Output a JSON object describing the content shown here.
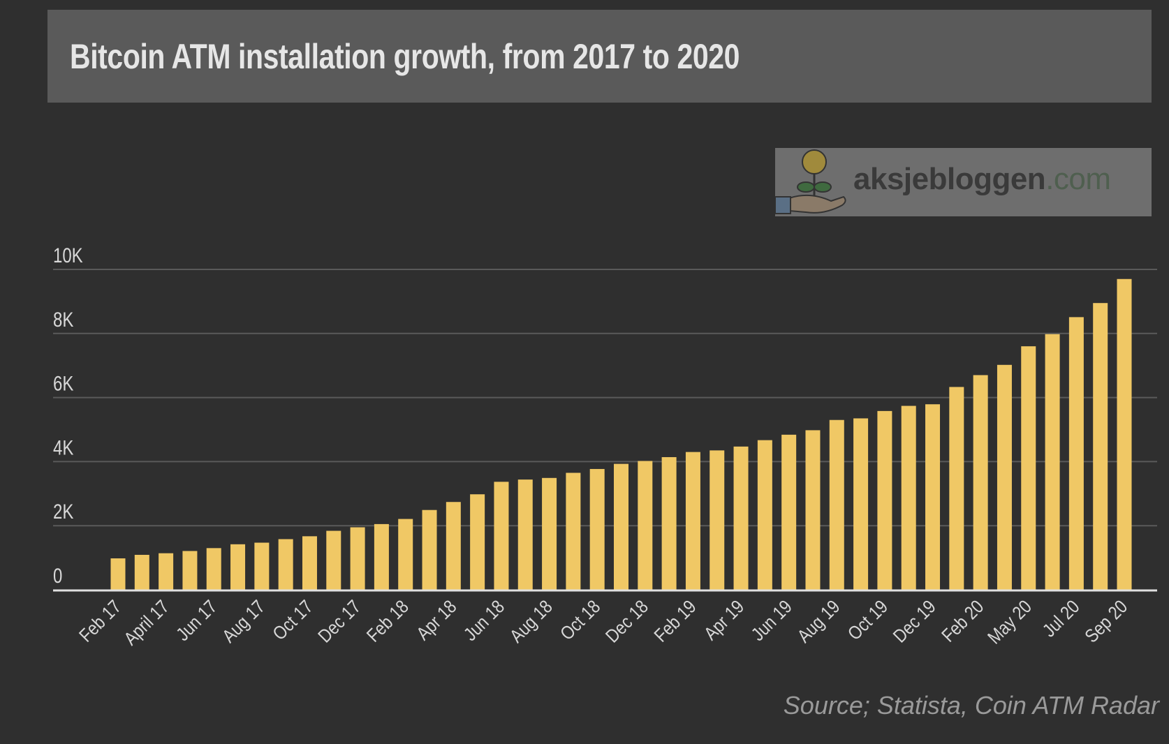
{
  "chart_data": {
    "type": "bar",
    "title": "Bitcoin ATM installation growth, from 2017 to 2020",
    "xlabel": "",
    "ylabel": "",
    "ylim": [
      0,
      10000
    ],
    "yticks": [
      0,
      2000,
      4000,
      6000,
      8000,
      10000
    ],
    "ytick_labels": [
      "0",
      "2K",
      "4K",
      "6K",
      "8K",
      "10K"
    ],
    "grid": true,
    "bar_color": "#f0c865",
    "xtick_labels": [
      "Feb 17",
      "April 17",
      "Jun 17",
      "Aug 17",
      "Oct 17",
      "Dec 17",
      "Feb 18",
      "Apr 18",
      "Jun 18",
      "Aug 18",
      "Oct 18",
      "Dec 18",
      "Feb 19",
      "Apr 19",
      "Jun 19",
      "Aug 19",
      "Oct 19",
      "Dec 19",
      "Feb 20",
      "May 20",
      "Jul 20",
      "Sep 20"
    ],
    "values": [
      980,
      1090,
      1140,
      1210,
      1300,
      1420,
      1470,
      1580,
      1670,
      1840,
      1950,
      2050,
      2210,
      2490,
      2740,
      2980,
      3370,
      3440,
      3490,
      3650,
      3770,
      3930,
      4020,
      4140,
      4300,
      4350,
      4470,
      4670,
      4840,
      4980,
      5300,
      5350,
      5580,
      5740,
      5790,
      6330,
      6700,
      7020,
      7600,
      7980,
      8510,
      8950,
      9700
    ]
  },
  "watermark": {
    "name": "aksjebloggen",
    "tld": ".com"
  },
  "source": "Source; Statista, Coin ATM Radar"
}
